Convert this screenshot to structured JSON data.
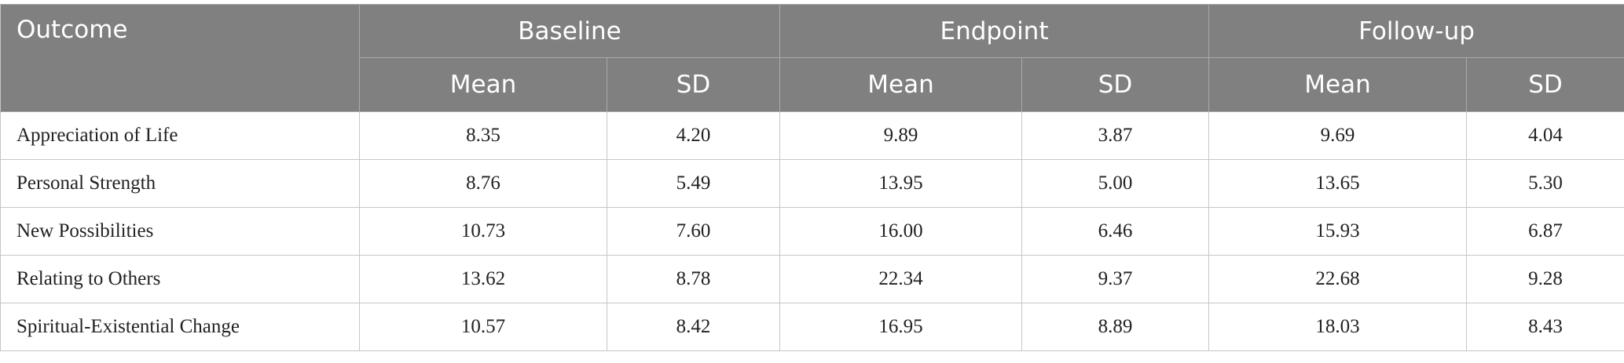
{
  "table": {
    "header": {
      "outcome": "Outcome",
      "groups": [
        "Baseline",
        "Endpoint",
        "Follow-up"
      ],
      "subheaders": [
        "Mean",
        "SD",
        "Mean",
        "SD",
        "Mean",
        "SD"
      ]
    },
    "rows": [
      [
        "Appreciation of Life",
        "8.35",
        "4.20",
        "9.89",
        "3.87",
        "9.69",
        "4.04"
      ],
      [
        "Personal Strength",
        "8.76",
        "5.49",
        "13.95",
        "5.00",
        "13.65",
        "5.30"
      ],
      [
        "New Possibilities",
        "10.73",
        "7.60",
        "16.00",
        "6.46",
        "15.93",
        "6.87"
      ],
      [
        "Relating to Others",
        "13.62",
        "8.78",
        "22.34",
        "9.37",
        "22.68",
        "9.28"
      ],
      [
        "Spiritual-Existential Change",
        "10.57",
        "8.42",
        "16.95",
        "8.89",
        "18.03",
        "8.43"
      ]
    ]
  }
}
